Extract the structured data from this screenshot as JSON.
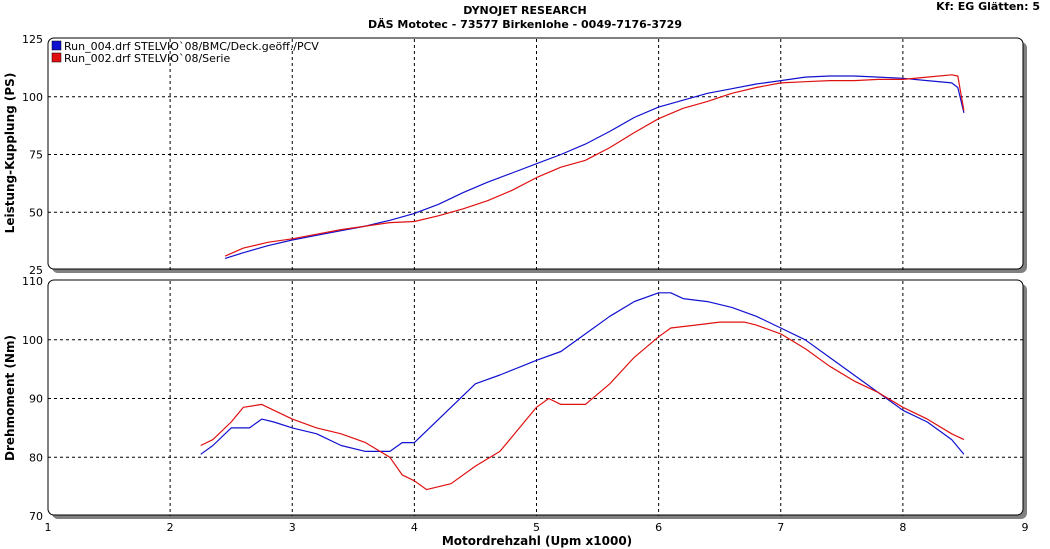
{
  "header": {
    "title": "DYNOJET RESEARCH",
    "subtitle": "DÄS Mototec - 73577 Birkenlohe  - 0049-7176-3729",
    "settings": "Kf: EG  Glätten: 5"
  },
  "colors": {
    "run_004": "#1010d0",
    "run_002": "#e01010",
    "background": "#ffffff",
    "grid": "#000000"
  },
  "chart_data": [
    {
      "type": "line",
      "ylabel": "Leistung-Kupplung (PS)",
      "xlabel": "",
      "xlim": [
        1,
        9
      ],
      "ylim": [
        25,
        125
      ],
      "yticks": [
        25,
        50,
        75,
        100,
        125
      ],
      "grid": true,
      "legend": "top-left",
      "series": [
        {
          "name": "Run_004.drf STELVIO`08/BMC/Deck.geöff./PCV",
          "color": "#1010d0",
          "x": [
            2.45,
            2.6,
            2.8,
            3.0,
            3.2,
            3.4,
            3.6,
            3.8,
            4.0,
            4.2,
            4.4,
            4.6,
            4.8,
            5.0,
            5.2,
            5.4,
            5.6,
            5.8,
            6.0,
            6.2,
            6.4,
            6.6,
            6.8,
            7.0,
            7.2,
            7.4,
            7.6,
            7.8,
            8.0,
            8.2,
            8.4,
            8.45,
            8.5
          ],
          "y": [
            30,
            32.5,
            35.5,
            38,
            40,
            42,
            44,
            46.5,
            49.5,
            53.5,
            58.5,
            63,
            67,
            71,
            75,
            79.5,
            85,
            91,
            95.5,
            98.5,
            101.5,
            103.5,
            105.5,
            107,
            108.5,
            109,
            109,
            108.5,
            108,
            107,
            106,
            104,
            93
          ]
        },
        {
          "name": "Run_002.drf STELVIO`08/Serie",
          "color": "#e01010",
          "x": [
            2.45,
            2.6,
            2.8,
            3.0,
            3.2,
            3.4,
            3.6,
            3.8,
            4.0,
            4.2,
            4.4,
            4.6,
            4.8,
            5.0,
            5.2,
            5.4,
            5.6,
            5.8,
            6.0,
            6.2,
            6.4,
            6.6,
            6.8,
            7.0,
            7.2,
            7.4,
            7.6,
            7.8,
            8.0,
            8.2,
            8.4,
            8.45,
            8.5
          ],
          "y": [
            31,
            34.5,
            37,
            38.5,
            40.5,
            42.5,
            44,
            45.5,
            46,
            48.5,
            51.5,
            55,
            59.5,
            65,
            69.5,
            72.5,
            78,
            84.5,
            90.5,
            95,
            98,
            101.5,
            104,
            106,
            106.5,
            107,
            107,
            107.5,
            107.5,
            108.5,
            109.5,
            109,
            94
          ]
        }
      ]
    },
    {
      "type": "line",
      "ylabel": "Drehmoment (Nm)",
      "xlabel": "Motordrehzahl (Upm x1000)",
      "xlim": [
        1,
        9
      ],
      "ylim": [
        70,
        110
      ],
      "yticks": [
        70,
        80,
        90,
        100,
        110
      ],
      "xticks": [
        1,
        2,
        3,
        4,
        5,
        6,
        7,
        8,
        9
      ],
      "grid": true,
      "series": [
        {
          "name": "Run_004.drf STELVIO`08/BMC/Deck.geöff./PCV",
          "color": "#1010d0",
          "x": [
            2.25,
            2.35,
            2.5,
            2.65,
            2.75,
            2.85,
            3.0,
            3.2,
            3.4,
            3.6,
            3.8,
            3.9,
            4.0,
            4.1,
            4.3,
            4.5,
            4.7,
            5.0,
            5.2,
            5.4,
            5.6,
            5.8,
            6.0,
            6.1,
            6.2,
            6.4,
            6.6,
            6.8,
            7.0,
            7.2,
            7.4,
            7.6,
            7.8,
            8.0,
            8.2,
            8.4,
            8.5
          ],
          "y": [
            80.5,
            82,
            85,
            85,
            86.5,
            86,
            85,
            84,
            82,
            81,
            81,
            82.5,
            82.5,
            84.5,
            88.5,
            92.5,
            94,
            96.5,
            98,
            101,
            104,
            106.5,
            108,
            108,
            107,
            106.5,
            105.5,
            104,
            102,
            100,
            97,
            94,
            91,
            88,
            86,
            83,
            80.5
          ]
        },
        {
          "name": "Run_002.drf STELVIO`08/Serie",
          "color": "#e01010",
          "x": [
            2.25,
            2.35,
            2.5,
            2.6,
            2.75,
            2.85,
            3.0,
            3.2,
            3.4,
            3.6,
            3.8,
            3.9,
            4.0,
            4.1,
            4.3,
            4.5,
            4.7,
            4.9,
            5.0,
            5.1,
            5.2,
            5.4,
            5.6,
            5.8,
            6.0,
            6.1,
            6.3,
            6.5,
            6.7,
            6.8,
            7.0,
            7.2,
            7.4,
            7.6,
            7.8,
            8.0,
            8.2,
            8.4,
            8.5
          ],
          "y": [
            82,
            83,
            86,
            88.5,
            89,
            88,
            86.5,
            85,
            84,
            82.5,
            80,
            77,
            76,
            74.5,
            75.5,
            78.5,
            81,
            86,
            88.5,
            90,
            89,
            89,
            92.5,
            97,
            100.5,
            102,
            102.5,
            103,
            103,
            102.5,
            101,
            98.5,
            95.5,
            93,
            91,
            88.5,
            86.5,
            84,
            83
          ]
        }
      ]
    }
  ]
}
